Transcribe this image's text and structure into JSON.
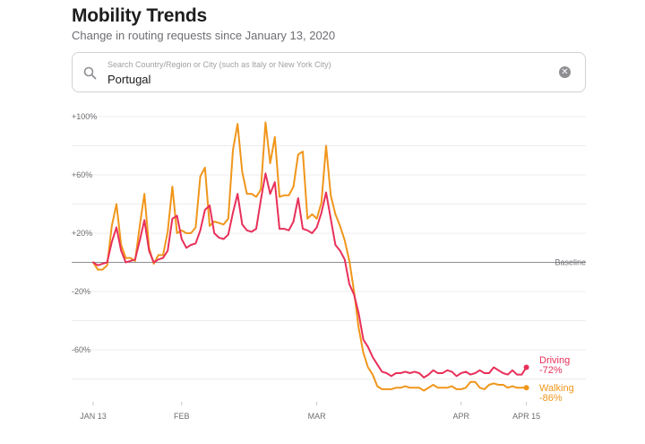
{
  "header": {
    "title": "Mobility Trends",
    "subtitle": "Change in routing requests since January 13, 2020"
  },
  "search": {
    "placeholder": "Search Country/Region or City (such as Italy or New York City)",
    "value": "Portugal",
    "icon": "search-icon",
    "clear_icon": "clear-icon"
  },
  "chart_data": {
    "type": "line",
    "title": "Mobility Trends",
    "ylim": [
      -100,
      100
    ],
    "y_ticks": [
      {
        "value": 100,
        "label": "+100%"
      },
      {
        "value": 60,
        "label": "+60%"
      },
      {
        "value": 20,
        "label": "+20%"
      },
      {
        "value": -20,
        "label": "-20%"
      },
      {
        "value": -60,
        "label": "-60%"
      }
    ],
    "x_ticks": [
      {
        "day": 0,
        "label": "JAN 13"
      },
      {
        "day": 19,
        "label": "FEB"
      },
      {
        "day": 48,
        "label": "MAR"
      },
      {
        "day": 79,
        "label": "APR"
      },
      {
        "day": 93,
        "label": "APR 15"
      }
    ],
    "baseline_label": "Baseline",
    "x_unit": "days since January 13, 2020",
    "series": [
      {
        "name": "Driving",
        "color": "#e8305a",
        "end_label": "-72%",
        "values": [
          0,
          -2,
          -1,
          0,
          14,
          24,
          8,
          0,
          1,
          2,
          15,
          29,
          8,
          0,
          2,
          3,
          8,
          30,
          32,
          16,
          10,
          12,
          13,
          22,
          36,
          39,
          20,
          17,
          16,
          19,
          34,
          47,
          26,
          22,
          21,
          23,
          43,
          61,
          47,
          55,
          23,
          23,
          22,
          28,
          44,
          23,
          22,
          20,
          24,
          34,
          48,
          30,
          12,
          8,
          2,
          -15,
          -22,
          -35,
          -53,
          -58,
          -65,
          -70,
          -75,
          -76,
          -78,
          -76,
          -76,
          -75,
          -76,
          -75,
          -76,
          -79,
          -77,
          -74,
          -76,
          -76,
          -74,
          -75,
          -78,
          -76,
          -75,
          -77,
          -76,
          -74,
          -76,
          -76,
          -72,
          -74,
          -76,
          -77,
          -74,
          -77,
          -77,
          -72
        ]
      },
      {
        "name": "Walking",
        "color": "#f0961b",
        "end_label": "-86%",
        "values": [
          0,
          -5,
          -5,
          -2,
          25,
          40,
          12,
          3,
          3,
          1,
          25,
          47,
          10,
          -1,
          5,
          5,
          21,
          52,
          20,
          22,
          20,
          20,
          24,
          59,
          65,
          25,
          28,
          27,
          26,
          30,
          77,
          95,
          62,
          47,
          47,
          45,
          50,
          96,
          68,
          86,
          45,
          46,
          46,
          52,
          74,
          76,
          30,
          33,
          30,
          41,
          80,
          46,
          33,
          25,
          15,
          1,
          -20,
          -45,
          -62,
          -72,
          -77,
          -85,
          -87,
          -87,
          -87,
          -86,
          -86,
          -85,
          -86,
          -86,
          -86,
          -88,
          -86,
          -84,
          -86,
          -86,
          -86,
          -85,
          -87,
          -87,
          -86,
          -82,
          -82,
          -86,
          -87,
          -84,
          -83,
          -84,
          -84,
          -86,
          -85,
          -86,
          -86,
          -86
        ]
      }
    ]
  }
}
